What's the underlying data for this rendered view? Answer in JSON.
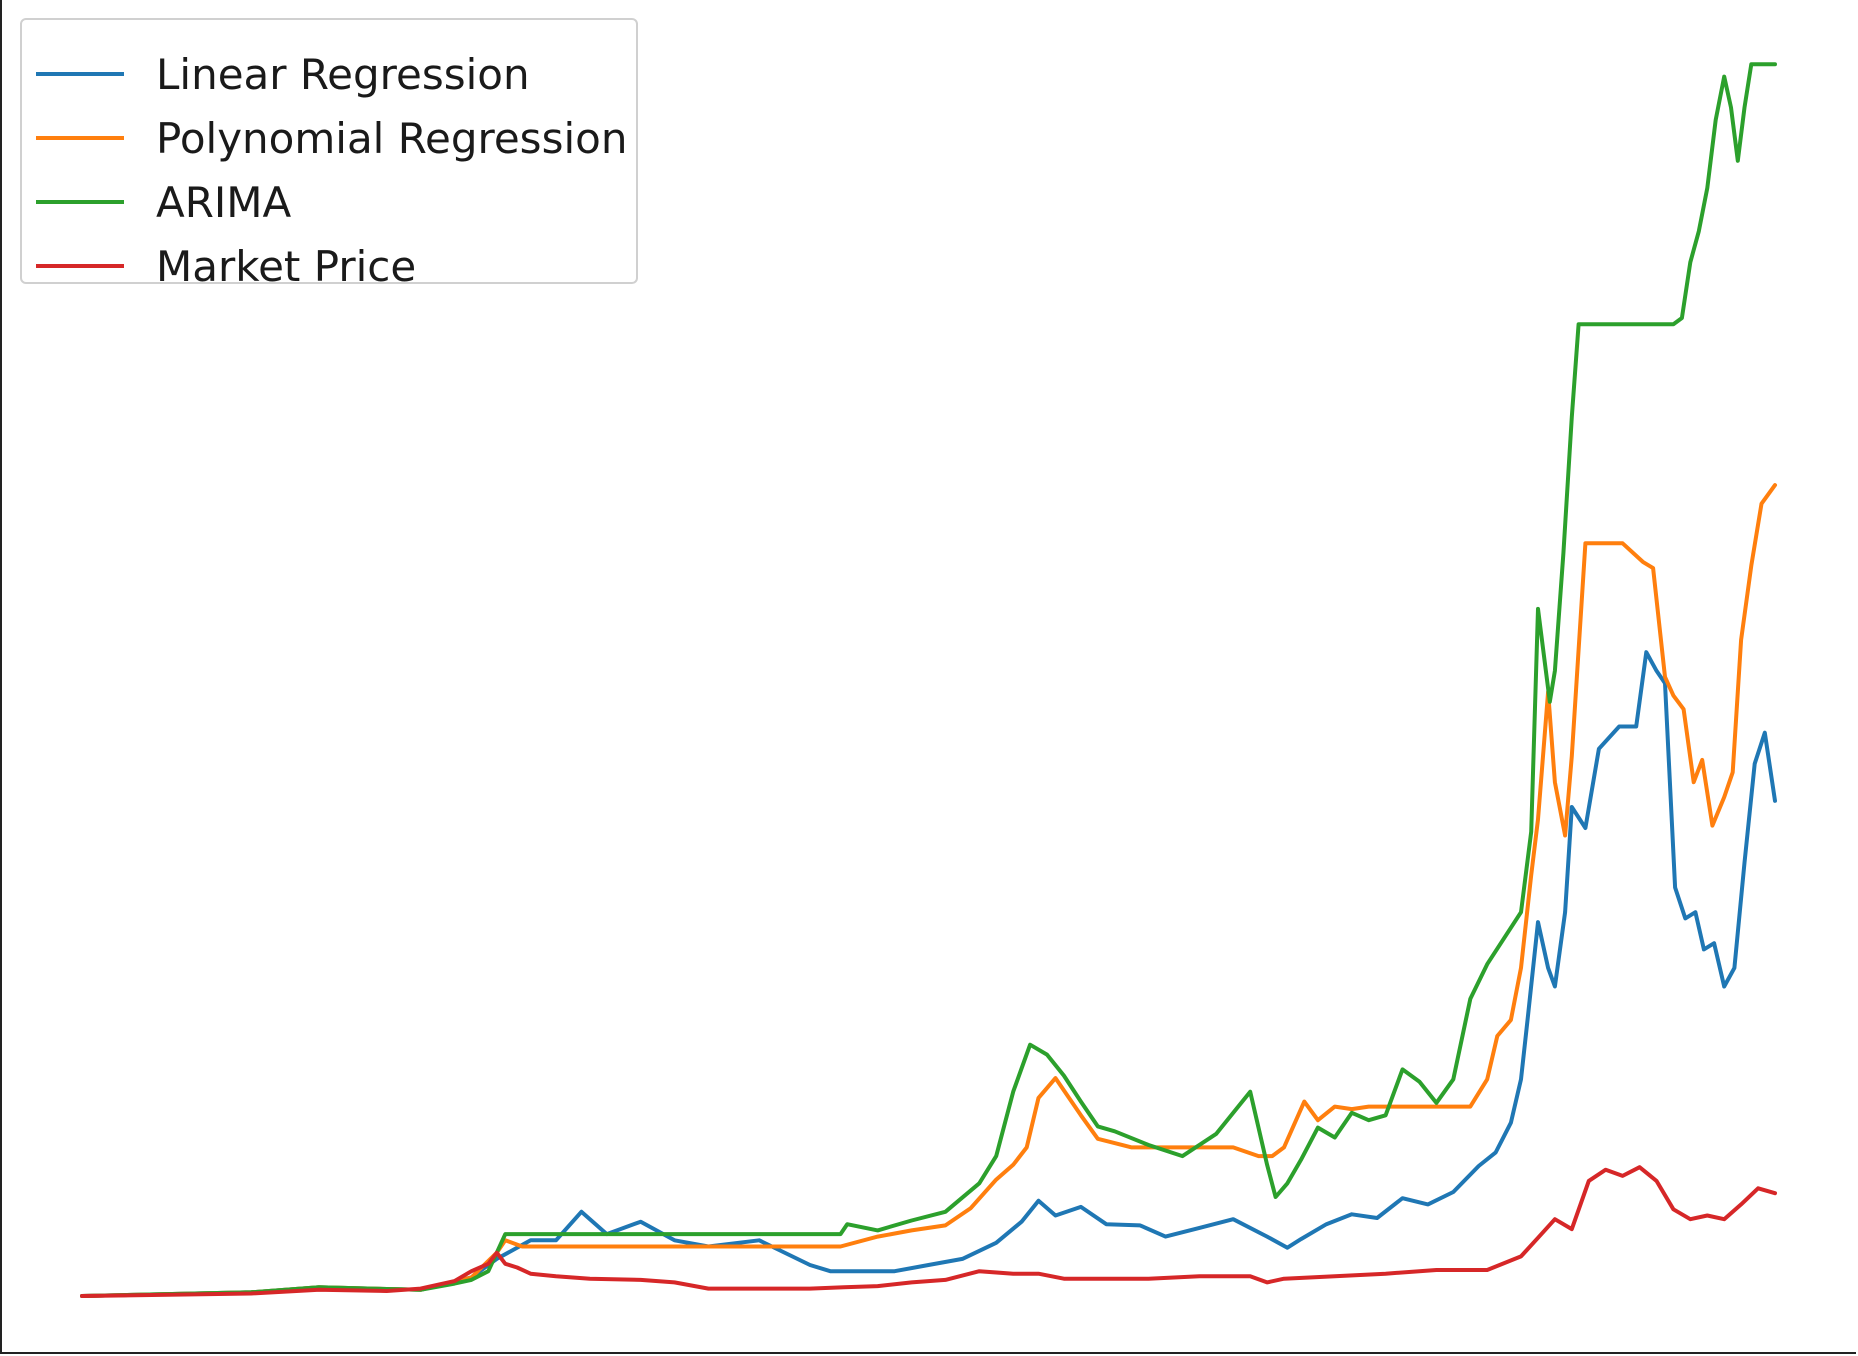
{
  "chart_data": {
    "type": "line",
    "title": "",
    "xlabel": "",
    "ylabel": "",
    "grid": false,
    "axes_visible": false,
    "legend_position": "top-left",
    "xlim": [
      0,
      100
    ],
    "ylim": [
      0,
      100
    ],
    "series": [
      {
        "name": "Linear Regression",
        "color": "#1f77b4",
        "x": [
          0,
          10,
          14,
          20,
          23,
          24.5,
          26.5,
          28,
          29.5,
          31,
          33,
          35,
          37,
          40,
          43,
          44.2,
          46,
          48,
          50,
          52,
          54,
          55.5,
          56.5,
          57.5,
          59,
          60.5,
          62.5,
          64,
          66,
          68,
          70,
          71.2,
          72,
          73.5,
          75,
          76.5,
          78,
          79.5,
          81,
          82.5,
          83.5,
          84.4,
          85,
          85.4,
          86,
          86.6,
          87,
          87.6,
          88,
          88.8,
          89.6,
          90.8,
          91.8,
          92.4,
          93,
          93.5,
          94.1,
          94.7,
          95.3,
          95.8,
          96.4,
          97,
          97.6,
          98.2,
          98.8,
          99.4,
          100
        ],
        "y": [
          0,
          0.3,
          0.7,
          0.5,
          1.5,
          3,
          4.5,
          4.5,
          6.8,
          5,
          6,
          4.5,
          4,
          4.5,
          2.5,
          2,
          2,
          2,
          2.5,
          3,
          4.3,
          6,
          7.7,
          6.5,
          7.2,
          5.8,
          5.7,
          4.8,
          5.5,
          6.2,
          4.8,
          3.9,
          4.6,
          5.8,
          6.6,
          6.3,
          7.9,
          7.4,
          8.4,
          10.5,
          11.6,
          14,
          17.5,
          22.5,
          30.2,
          26.5,
          25,
          31,
          39.5,
          37.8,
          44.2,
          46,
          46,
          52,
          50.5,
          49.5,
          33,
          30.5,
          31,
          28,
          28.5,
          25,
          26.5,
          35,
          43,
          45.5,
          40
        ]
      },
      {
        "name": "Polynomial Regression",
        "color": "#ff7f0e",
        "x": [
          0,
          10,
          14,
          20,
          23,
          24.5,
          25,
          26,
          30,
          35,
          40,
          43.2,
          44.8,
          47,
          49,
          51,
          52.5,
          54,
          55,
          55.8,
          56.5,
          57.5,
          59,
          60,
          62,
          64,
          66,
          68,
          69.5,
          70.3,
          71,
          72.2,
          73,
          74,
          75,
          76,
          78,
          80,
          82,
          83,
          83.6,
          84.4,
          85,
          85.6,
          86,
          86.6,
          87,
          87.6,
          88,
          88.8,
          89.6,
          91,
          92.2,
          92.8,
          93.5,
          94,
          94.6,
          95.2,
          95.7,
          96.3,
          97,
          97.5,
          98,
          98.6,
          99.2,
          100
        ],
        "y": [
          0,
          0.3,
          0.7,
          0.5,
          1.5,
          3.5,
          4.5,
          4,
          4,
          4,
          4,
          4,
          4,
          4.8,
          5.3,
          5.7,
          7.1,
          9.4,
          10.6,
          12,
          16,
          17.6,
          14.6,
          12.7,
          12,
          12,
          12,
          12,
          11.3,
          11.3,
          12,
          15.7,
          14.2,
          15.3,
          15.1,
          15.3,
          15.3,
          15.3,
          15.3,
          17.5,
          21,
          22.3,
          26.5,
          34,
          38.5,
          48.8,
          41.5,
          37.2,
          43.6,
          60.8,
          60.8,
          60.8,
          59.3,
          58.8,
          50,
          48.5,
          47.4,
          41.5,
          43.3,
          38,
          40.3,
          42.3,
          53,
          59,
          64,
          65.5
        ]
      },
      {
        "name": "ARIMA",
        "color": "#2ca02c",
        "x": [
          0,
          10,
          14,
          20,
          22,
          23,
          24,
          25,
          30,
          35,
          40,
          44.8,
          45.2,
          47,
          49,
          51,
          53,
          54,
          55,
          56,
          57,
          58,
          59,
          60,
          61,
          63,
          65,
          67,
          69,
          70,
          70.5,
          71.2,
          72,
          73,
          74,
          75,
          76,
          77,
          78,
          79,
          80,
          81,
          82,
          83,
          84,
          85,
          85.6,
          86,
          86.7,
          87,
          87.5,
          88,
          88.4,
          88.8,
          89.5,
          91,
          93,
          94,
          94.5,
          95,
          95.5,
          96,
          96.5,
          97,
          97.4,
          97.8,
          98.2,
          98.6,
          100
        ],
        "y": [
          0,
          0.3,
          0.7,
          0.5,
          1,
          1.3,
          2,
          5,
          5,
          5,
          5,
          5,
          5.8,
          5.3,
          6.1,
          6.8,
          9.1,
          11.3,
          16.5,
          20.3,
          19.5,
          17.8,
          15.7,
          13.7,
          13.3,
          12.2,
          11.3,
          13.1,
          16.5,
          10.6,
          8,
          9.1,
          11,
          13.6,
          12.8,
          14.8,
          14.2,
          14.6,
          18.3,
          17.3,
          15.6,
          17.5,
          24,
          26.8,
          28.9,
          31,
          37.5,
          55.5,
          48,
          50.5,
          60,
          71,
          78.5,
          78.5,
          78.5,
          78.5,
          78.5,
          78.5,
          79,
          83.5,
          86,
          89.5,
          95,
          98.5,
          96,
          91.7,
          96,
          99.5,
          99.5
        ]
      },
      {
        "name": "Market Price",
        "color": "#d62728",
        "x": [
          0,
          10,
          14,
          18,
          20,
          22,
          23,
          24,
          24.5,
          25,
          25.7,
          26.5,
          28,
          30,
          33,
          35,
          37,
          40,
          43,
          45,
          47,
          49,
          51,
          53,
          55,
          56.5,
          58,
          60,
          63,
          66,
          69,
          70,
          71,
          74,
          77,
          80,
          83,
          85,
          86,
          87,
          88,
          89,
          90,
          91,
          92,
          93,
          94,
          95,
          96,
          97,
          98,
          99,
          100
        ],
        "y": [
          0,
          0.2,
          0.5,
          0.4,
          0.6,
          1.2,
          2,
          2.6,
          3.5,
          2.6,
          2.3,
          1.8,
          1.6,
          1.4,
          1.3,
          1.1,
          0.6,
          0.6,
          0.6,
          0.7,
          0.8,
          1.1,
          1.3,
          2,
          1.8,
          1.8,
          1.4,
          1.4,
          1.4,
          1.6,
          1.6,
          1.1,
          1.4,
          1.6,
          1.8,
          2.1,
          2.1,
          3.2,
          4.7,
          6.2,
          5.4,
          9.3,
          10.2,
          9.7,
          10.4,
          9.3,
          7,
          6.2,
          6.5,
          6.2,
          7.4,
          8.7,
          8.3
        ]
      }
    ]
  }
}
